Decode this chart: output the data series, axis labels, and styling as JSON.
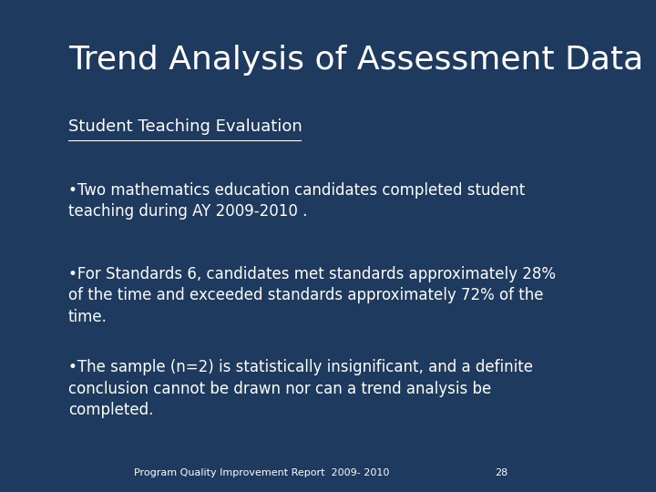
{
  "background_color": "#1e3a5f",
  "title": "Trend Analysis of Assessment Data",
  "title_color": "#ffffff",
  "title_fontsize": 26,
  "subtitle": "Student Teaching Evaluation",
  "subtitle_color": "#ffffff",
  "subtitle_fontsize": 13,
  "bullets": [
    "•Two mathematics education candidates completed student\nteaching during AY 2009-2010 .",
    "•For Standards 6, candidates met standards approximately 28%\nof the time and exceeded standards approximately 72% of the\ntime.",
    "•The sample (n=2) is statistically insignificant, and a definite\nconclusion cannot be drawn nor can a trend analysis be\ncompleted."
  ],
  "bullet_color": "#ffffff",
  "bullet_fontsize": 12,
  "footer_text": "Program Quality Improvement Report  2009- 2010",
  "footer_page": "28",
  "footer_color": "#ffffff",
  "footer_fontsize": 8
}
